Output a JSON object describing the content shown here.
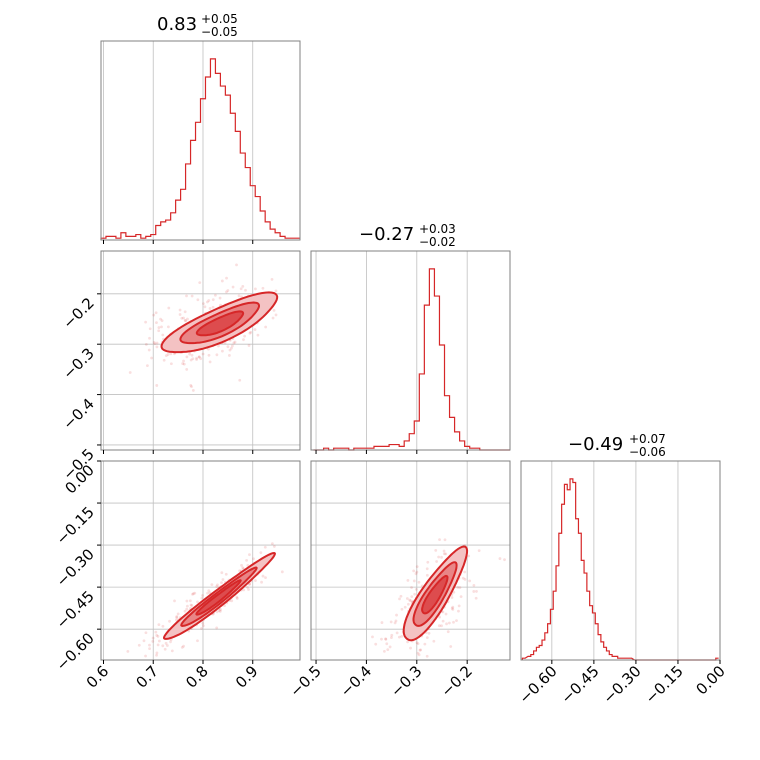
{
  "chart_data": {
    "type": "corner",
    "parameters": [
      {
        "title_value": "0.83",
        "title_plus": "+0.05",
        "title_minus": "−0.05",
        "range": [
          0.595,
          0.995
        ],
        "ticks": [
          0.6,
          0.7,
          0.8,
          0.9
        ],
        "tick_labels": [
          "0.6",
          "0.7",
          "0.8",
          "0.9"
        ],
        "hist": [
          [
            0.6,
            0.01
          ],
          [
            0.61,
            0.02
          ],
          [
            0.62,
            0.02
          ],
          [
            0.63,
            0.01
          ],
          [
            0.64,
            0.04
          ],
          [
            0.65,
            0.02
          ],
          [
            0.66,
            0.02
          ],
          [
            0.67,
            0.03
          ],
          [
            0.68,
            0.01
          ],
          [
            0.69,
            0.02
          ],
          [
            0.7,
            0.03
          ],
          [
            0.71,
            0.08
          ],
          [
            0.72,
            0.1
          ],
          [
            0.73,
            0.11
          ],
          [
            0.74,
            0.15
          ],
          [
            0.75,
            0.22
          ],
          [
            0.76,
            0.28
          ],
          [
            0.77,
            0.42
          ],
          [
            0.78,
            0.55
          ],
          [
            0.79,
            0.65
          ],
          [
            0.8,
            0.78
          ],
          [
            0.81,
            0.9
          ],
          [
            0.82,
            1.0
          ],
          [
            0.83,
            0.92
          ],
          [
            0.84,
            0.85
          ],
          [
            0.85,
            0.8
          ],
          [
            0.86,
            0.7
          ],
          [
            0.87,
            0.6
          ],
          [
            0.88,
            0.48
          ],
          [
            0.89,
            0.4
          ],
          [
            0.9,
            0.3
          ],
          [
            0.91,
            0.24
          ],
          [
            0.92,
            0.16
          ],
          [
            0.93,
            0.1
          ],
          [
            0.94,
            0.06
          ],
          [
            0.95,
            0.04
          ],
          [
            0.96,
            0.02
          ],
          [
            0.97,
            0.01
          ],
          [
            0.98,
            0.01
          ],
          [
            0.99,
            0.01
          ]
        ]
      },
      {
        "title_value": "−0.27",
        "title_plus": "+0.03",
        "title_minus": "−0.02",
        "range": [
          -0.51,
          -0.115
        ],
        "ticks": [
          -0.5,
          -0.4,
          -0.3,
          -0.2
        ],
        "tick_labels": [
          "−0.5",
          "−0.4",
          "−0.3",
          "−0.2"
        ],
        "hist": [
          [
            -0.5,
            0.0
          ],
          [
            -0.49,
            0.0
          ],
          [
            -0.48,
            0.01
          ],
          [
            -0.47,
            0.0
          ],
          [
            -0.46,
            0.01
          ],
          [
            -0.45,
            0.01
          ],
          [
            -0.44,
            0.01
          ],
          [
            -0.43,
            0.0
          ],
          [
            -0.42,
            0.01
          ],
          [
            -0.41,
            0.01
          ],
          [
            -0.4,
            0.01
          ],
          [
            -0.39,
            0.01
          ],
          [
            -0.38,
            0.02
          ],
          [
            -0.37,
            0.02
          ],
          [
            -0.36,
            0.02
          ],
          [
            -0.35,
            0.03
          ],
          [
            -0.34,
            0.03
          ],
          [
            -0.33,
            0.02
          ],
          [
            -0.32,
            0.05
          ],
          [
            -0.31,
            0.09
          ],
          [
            -0.3,
            0.16
          ],
          [
            -0.29,
            0.42
          ],
          [
            -0.28,
            0.8
          ],
          [
            -0.27,
            1.0
          ],
          [
            -0.26,
            0.85
          ],
          [
            -0.25,
            0.58
          ],
          [
            -0.24,
            0.3
          ],
          [
            -0.23,
            0.18
          ],
          [
            -0.22,
            0.1
          ],
          [
            -0.21,
            0.05
          ],
          [
            -0.2,
            0.02
          ],
          [
            -0.19,
            0.01
          ],
          [
            -0.18,
            0.01
          ],
          [
            -0.17,
            0.0
          ],
          [
            -0.16,
            0.0
          ],
          [
            -0.15,
            0.0
          ],
          [
            -0.14,
            0.0
          ],
          [
            -0.13,
            0.0
          ],
          [
            -0.12,
            0.0
          ]
        ]
      },
      {
        "title_value": "−0.49",
        "title_plus": "+0.07",
        "title_minus": "−0.06",
        "range": [
          -0.71,
          0.0
        ],
        "ticks": [
          -0.6,
          -0.45,
          -0.3,
          -0.15,
          0.0
        ],
        "tick_labels": [
          "−0.60",
          "−0.45",
          "−0.30",
          "−0.15",
          "0.00"
        ],
        "hist": [
          [
            -0.7,
            0.01
          ],
          [
            -0.68,
            0.02
          ],
          [
            -0.67,
            0.03
          ],
          [
            -0.66,
            0.05
          ],
          [
            -0.65,
            0.07
          ],
          [
            -0.64,
            0.08
          ],
          [
            -0.63,
            0.11
          ],
          [
            -0.62,
            0.15
          ],
          [
            -0.61,
            0.2
          ],
          [
            -0.6,
            0.28
          ],
          [
            -0.59,
            0.38
          ],
          [
            -0.58,
            0.52
          ],
          [
            -0.57,
            0.7
          ],
          [
            -0.56,
            0.86
          ],
          [
            -0.55,
            0.97
          ],
          [
            -0.54,
            0.94
          ],
          [
            -0.53,
            1.0
          ],
          [
            -0.52,
            0.98
          ],
          [
            -0.51,
            0.78
          ],
          [
            -0.5,
            0.7
          ],
          [
            -0.49,
            0.55
          ],
          [
            -0.48,
            0.48
          ],
          [
            -0.47,
            0.38
          ],
          [
            -0.46,
            0.3
          ],
          [
            -0.45,
            0.26
          ],
          [
            -0.44,
            0.2
          ],
          [
            -0.43,
            0.14
          ],
          [
            -0.42,
            0.1
          ],
          [
            -0.41,
            0.07
          ],
          [
            -0.4,
            0.05
          ],
          [
            -0.39,
            0.03
          ],
          [
            -0.38,
            0.02
          ],
          [
            -0.37,
            0.02
          ],
          [
            -0.36,
            0.01
          ],
          [
            -0.34,
            0.01
          ],
          [
            -0.32,
            0.01
          ],
          [
            -0.3,
            0.0
          ],
          [
            -0.02,
            0.0
          ],
          [
            -0.01,
            0.01
          ]
        ]
      }
    ],
    "pairs": [
      {
        "x": 0,
        "y": 1,
        "center": [
          0.835,
          -0.26
        ],
        "slope": 0.45,
        "sigma_major": 0.05,
        "sigma_minor": 0.013,
        "contour_scales": [
          1.0,
          1.7,
          2.5
        ],
        "scatter_count": 280
      },
      {
        "x": 0,
        "y": 2,
        "center": [
          0.83,
          -0.49
        ],
        "slope": 1.4,
        "sigma_major": 0.075,
        "sigma_minor": 0.008,
        "contour_scales": [
          1.0,
          1.7,
          2.5
        ],
        "scatter_count": 260
      },
      {
        "x": 1,
        "y": 2,
        "center": [
          -0.265,
          -0.48
        ],
        "slope": 3.0,
        "sigma_major": 0.07,
        "sigma_minor": 0.012,
        "contour_scales": [
          1.0,
          1.7,
          2.5
        ],
        "scatter_count": 260
      }
    ],
    "grid": true,
    "color": "#d62728"
  }
}
